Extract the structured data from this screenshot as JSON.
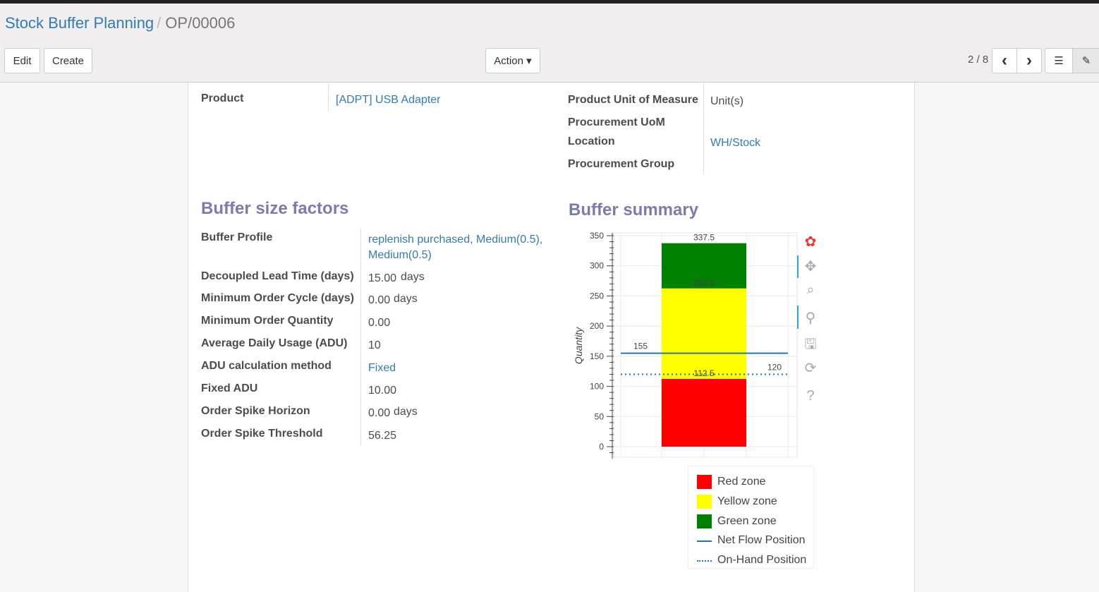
{
  "breadcrumb": {
    "parent": "Stock Buffer Planning",
    "current": "OP/00006"
  },
  "toolbar": {
    "edit": "Edit",
    "create": "Create",
    "action": "Action ▾",
    "pager": "2 / 8",
    "prev": "‹",
    "next": "›"
  },
  "form": {
    "product_label": "Product",
    "product_value": "[ADPT] USB Adapter",
    "uom_label": "Product Unit of Measure",
    "uom_value": "Unit(s)",
    "proc_uom_label": "Procurement UoM",
    "location_label": "Location",
    "location_value": "WH/Stock",
    "proc_group_label": "Procurement Group"
  },
  "factors": {
    "title": "Buffer size factors",
    "rows": [
      {
        "label": "Buffer Profile",
        "value": "replenish purchased, Medium(0.5),",
        "value2": "Medium(0.5)",
        "link": true
      },
      {
        "label": "Decoupled Lead Time (days)",
        "value": "15.00",
        "unit": "days"
      },
      {
        "label": "Minimum Order Cycle (days)",
        "value": "0.00",
        "unit": "days"
      },
      {
        "label": "Minimum Order Quantity",
        "value": "0.00"
      },
      {
        "label": "Average Daily Usage (ADU)",
        "value": "10"
      },
      {
        "label": "ADU calculation method",
        "value": "Fixed",
        "link": true
      },
      {
        "label": "Fixed ADU",
        "value": "10.00"
      },
      {
        "label": "Order Spike Horizon",
        "value": "0.00",
        "unit": "days"
      },
      {
        "label": "Order Spike Threshold",
        "value": "56.25"
      }
    ]
  },
  "summary": {
    "title": "Buffer summary"
  },
  "chart_data": {
    "type": "bar",
    "stacked": true,
    "ylabel": "Quantity",
    "ylim": [
      0,
      350
    ],
    "yticks": [
      0,
      50,
      100,
      150,
      200,
      250,
      300,
      350
    ],
    "grid": true,
    "series": [
      {
        "name": "Red zone",
        "from": 0,
        "to": 112.5,
        "color": "#ff0000",
        "label": "112.5"
      },
      {
        "name": "Yellow zone",
        "from": 112.5,
        "to": 262.5,
        "color": "#ffff00",
        "label": "262.5"
      },
      {
        "name": "Green zone",
        "from": 262.5,
        "to": 337.5,
        "color": "#008000",
        "label": "337.5"
      }
    ],
    "lines": [
      {
        "name": "Net Flow Position",
        "value": 155,
        "style": "solid",
        "color": "#1f77b4",
        "label": "155"
      },
      {
        "name": "On-Hand Position",
        "value": 120,
        "style": "dotted",
        "color": "#1f77b4",
        "label": "120"
      }
    ],
    "legend_position": "bottom-right"
  }
}
